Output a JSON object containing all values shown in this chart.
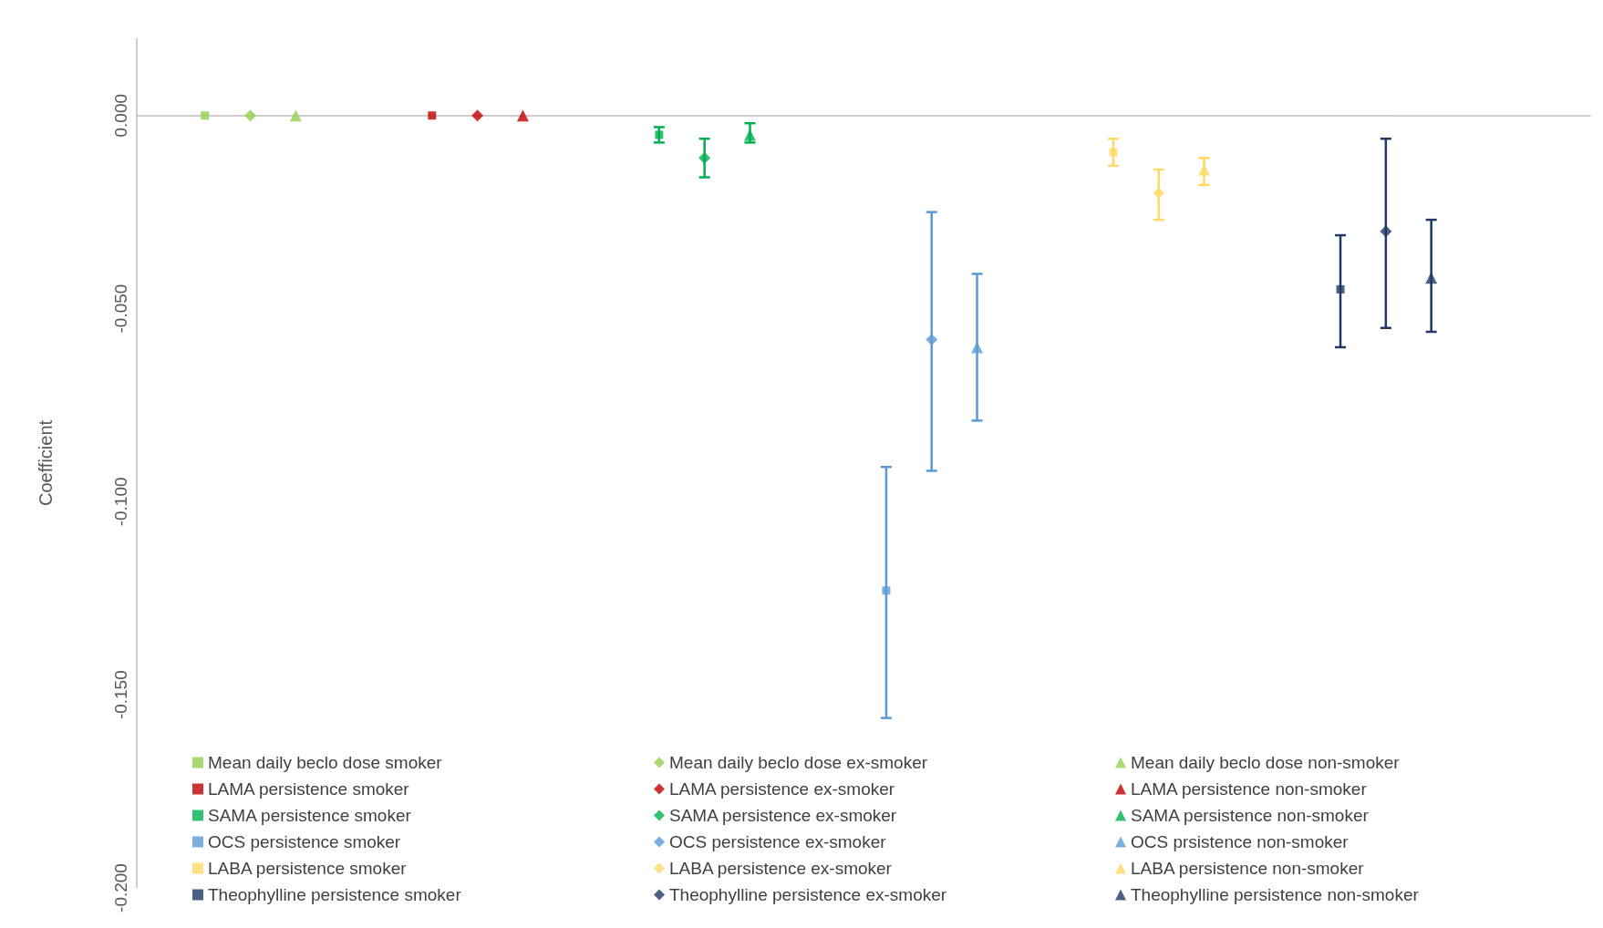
{
  "chart_data": {
    "type": "scatter",
    "ylabel": "Coefficient",
    "categories": [
      null,
      null,
      null,
      null,
      null,
      null,
      null,
      null,
      null,
      null,
      null,
      null,
      null,
      null,
      null,
      null,
      null,
      null,
      null,
      null,
      null,
      null,
      null,
      null,
      null,
      null,
      null,
      null,
      null,
      null,
      null,
      null
    ],
    "ylim": [
      -0.2,
      0.02
    ],
    "yticks": [
      {
        "value": 0,
        "label": "0.000"
      },
      {
        "value": -0.05,
        "label": "-0.050"
      },
      {
        "value": -0.1,
        "label": "-0.100"
      },
      {
        "value": -0.15,
        "label": "-0.150"
      },
      {
        "value": -0.2,
        "label": "-0.200"
      }
    ],
    "tick_labels": "y",
    "legend": "bottom",
    "series": [
      {
        "name": "Mean daily beclo dose smoker",
        "color": "#92d050",
        "marker": "square",
        "values": [
          null,
          0,
          null,
          null,
          null,
          null,
          null,
          null,
          null,
          null,
          null,
          null,
          null,
          null,
          null,
          null,
          null,
          null,
          null,
          null,
          null,
          null,
          null,
          null,
          null,
          null,
          null,
          null,
          null,
          null,
          null,
          null
        ]
      },
      {
        "name": "Mean daily beclo dose ex-smoker",
        "color": "#92d050",
        "marker": "diamond",
        "values": [
          null,
          null,
          0,
          null,
          null,
          null,
          null,
          null,
          null,
          null,
          null,
          null,
          null,
          null,
          null,
          null,
          null,
          null,
          null,
          null,
          null,
          null,
          null,
          null,
          null,
          null,
          null,
          null,
          null,
          null,
          null,
          null
        ]
      },
      {
        "name": "Mean daily beclo dose non-smoker",
        "color": "#92d050",
        "marker": "triangle",
        "values": [
          null,
          null,
          null,
          0,
          null,
          null,
          null,
          null,
          null,
          null,
          null,
          null,
          null,
          null,
          null,
          null,
          null,
          null,
          null,
          null,
          null,
          null,
          null,
          null,
          null,
          null,
          null,
          null,
          null,
          null,
          null,
          null
        ]
      },
      {
        "name": "LAMA persistence smoker",
        "color": "#c00000",
        "marker": "square",
        "values": [
          null,
          null,
          null,
          null,
          null,
          null,
          0,
          null,
          null,
          null,
          null,
          null,
          null,
          null,
          null,
          null,
          null,
          null,
          null,
          null,
          null,
          null,
          null,
          null,
          null,
          null,
          null,
          null,
          null,
          null,
          null,
          null
        ]
      },
      {
        "name": "LAMA persistence ex-smoker",
        "color": "#c00000",
        "marker": "diamond",
        "values": [
          null,
          null,
          null,
          null,
          null,
          null,
          null,
          0,
          null,
          null,
          null,
          null,
          null,
          null,
          null,
          null,
          null,
          null,
          null,
          null,
          null,
          null,
          null,
          null,
          null,
          null,
          null,
          null,
          null,
          null,
          null,
          null
        ]
      },
      {
        "name": "LAMA persistence non-smoker",
        "color": "#c00000",
        "marker": "triangle",
        "values": [
          null,
          null,
          null,
          null,
          null,
          null,
          null,
          null,
          0,
          null,
          null,
          null,
          null,
          null,
          null,
          null,
          null,
          null,
          null,
          null,
          null,
          null,
          null,
          null,
          null,
          null,
          null,
          null,
          null,
          null,
          null,
          null
        ]
      },
      {
        "name": "SAMA persistence smoker",
        "color": "#00b050",
        "marker": "square",
        "values": [
          null,
          null,
          null,
          null,
          null,
          null,
          null,
          null,
          null,
          null,
          null,
          -0.005,
          null,
          null,
          null,
          null,
          null,
          null,
          null,
          null,
          null,
          null,
          null,
          null,
          null,
          null,
          null,
          null,
          null,
          null,
          null,
          null
        ],
        "errors": [
          null,
          null,
          null,
          null,
          null,
          null,
          null,
          null,
          null,
          null,
          null,
          [
            -0.007,
            -0.003
          ],
          null,
          null,
          null,
          null,
          null,
          null,
          null,
          null,
          null,
          null,
          null,
          null,
          null,
          null,
          null,
          null,
          null,
          null,
          null,
          null
        ]
      },
      {
        "name": "SAMA persistence ex-smoker",
        "color": "#00b050",
        "marker": "diamond",
        "values": [
          null,
          null,
          null,
          null,
          null,
          null,
          null,
          null,
          null,
          null,
          null,
          null,
          -0.011,
          null,
          null,
          null,
          null,
          null,
          null,
          null,
          null,
          null,
          null,
          null,
          null,
          null,
          null,
          null,
          null,
          null,
          null,
          null
        ],
        "errors": [
          null,
          null,
          null,
          null,
          null,
          null,
          null,
          null,
          null,
          null,
          null,
          null,
          [
            -0.016,
            -0.006
          ],
          null,
          null,
          null,
          null,
          null,
          null,
          null,
          null,
          null,
          null,
          null,
          null,
          null,
          null,
          null,
          null,
          null,
          null,
          null
        ]
      },
      {
        "name": "SAMA persistence non-smoker",
        "color": "#00b050",
        "marker": "triangle",
        "values": [
          null,
          null,
          null,
          null,
          null,
          null,
          null,
          null,
          null,
          null,
          null,
          null,
          null,
          -0.005,
          null,
          null,
          null,
          null,
          null,
          null,
          null,
          null,
          null,
          null,
          null,
          null,
          null,
          null,
          null,
          null,
          null,
          null
        ],
        "errors": [
          null,
          null,
          null,
          null,
          null,
          null,
          null,
          null,
          null,
          null,
          null,
          null,
          null,
          [
            -0.007,
            -0.002
          ],
          null,
          null,
          null,
          null,
          null,
          null,
          null,
          null,
          null,
          null,
          null,
          null,
          null,
          null,
          null,
          null,
          null,
          null
        ]
      },
      {
        "name": "OCS persistence smoker",
        "color": "#5b9bd5",
        "marker": "square",
        "values": [
          null,
          null,
          null,
          null,
          null,
          null,
          null,
          null,
          null,
          null,
          null,
          null,
          null,
          null,
          null,
          null,
          -0.123,
          null,
          null,
          null,
          null,
          null,
          null,
          null,
          null,
          null,
          null,
          null,
          null,
          null,
          null,
          null
        ],
        "errors": [
          null,
          null,
          null,
          null,
          null,
          null,
          null,
          null,
          null,
          null,
          null,
          null,
          null,
          null,
          null,
          null,
          [
            -0.156,
            -0.091
          ],
          null,
          null,
          null,
          null,
          null,
          null,
          null,
          null,
          null,
          null,
          null,
          null,
          null,
          null,
          null
        ]
      },
      {
        "name": "OCS persistence ex-smoker",
        "color": "#5b9bd5",
        "marker": "diamond",
        "values": [
          null,
          null,
          null,
          null,
          null,
          null,
          null,
          null,
          null,
          null,
          null,
          null,
          null,
          null,
          null,
          null,
          null,
          -0.058,
          null,
          null,
          null,
          null,
          null,
          null,
          null,
          null,
          null,
          null,
          null,
          null,
          null,
          null
        ],
        "errors": [
          null,
          null,
          null,
          null,
          null,
          null,
          null,
          null,
          null,
          null,
          null,
          null,
          null,
          null,
          null,
          null,
          null,
          [
            -0.092,
            -0.025
          ],
          null,
          null,
          null,
          null,
          null,
          null,
          null,
          null,
          null,
          null,
          null,
          null,
          null,
          null
        ]
      },
      {
        "name": "OCS prsistence non-smoker",
        "color": "#5b9bd5",
        "marker": "triangle",
        "values": [
          null,
          null,
          null,
          null,
          null,
          null,
          null,
          null,
          null,
          null,
          null,
          null,
          null,
          null,
          null,
          null,
          null,
          null,
          -0.06,
          null,
          null,
          null,
          null,
          null,
          null,
          null,
          null,
          null,
          null,
          null,
          null,
          null
        ],
        "errors": [
          null,
          null,
          null,
          null,
          null,
          null,
          null,
          null,
          null,
          null,
          null,
          null,
          null,
          null,
          null,
          null,
          null,
          null,
          [
            -0.079,
            -0.041
          ],
          null,
          null,
          null,
          null,
          null,
          null,
          null,
          null,
          null,
          null,
          null,
          null,
          null
        ]
      },
      {
        "name": "LABA persistence smoker",
        "color": "#ffd966",
        "marker": "square",
        "values": [
          null,
          null,
          null,
          null,
          null,
          null,
          null,
          null,
          null,
          null,
          null,
          null,
          null,
          null,
          null,
          null,
          null,
          null,
          null,
          null,
          null,
          -0.0095,
          null,
          null,
          null,
          null,
          null,
          null,
          null,
          null,
          null,
          null
        ],
        "errors": [
          null,
          null,
          null,
          null,
          null,
          null,
          null,
          null,
          null,
          null,
          null,
          null,
          null,
          null,
          null,
          null,
          null,
          null,
          null,
          null,
          null,
          [
            -0.013,
            -0.006
          ],
          null,
          null,
          null,
          null,
          null,
          null,
          null,
          null,
          null,
          null
        ]
      },
      {
        "name": "LABA persistence ex-smoker",
        "color": "#ffd966",
        "marker": "diamond",
        "values": [
          null,
          null,
          null,
          null,
          null,
          null,
          null,
          null,
          null,
          null,
          null,
          null,
          null,
          null,
          null,
          null,
          null,
          null,
          null,
          null,
          null,
          null,
          -0.02,
          null,
          null,
          null,
          null,
          null,
          null,
          null,
          null,
          null
        ],
        "errors": [
          null,
          null,
          null,
          null,
          null,
          null,
          null,
          null,
          null,
          null,
          null,
          null,
          null,
          null,
          null,
          null,
          null,
          null,
          null,
          null,
          null,
          null,
          [
            -0.027,
            -0.014
          ],
          null,
          null,
          null,
          null,
          null,
          null,
          null,
          null,
          null
        ]
      },
      {
        "name": "LABA persistence non-smoker",
        "color": "#ffd966",
        "marker": "triangle",
        "values": [
          null,
          null,
          null,
          null,
          null,
          null,
          null,
          null,
          null,
          null,
          null,
          null,
          null,
          null,
          null,
          null,
          null,
          null,
          null,
          null,
          null,
          null,
          null,
          -0.014,
          null,
          null,
          null,
          null,
          null,
          null,
          null,
          null
        ],
        "errors": [
          null,
          null,
          null,
          null,
          null,
          null,
          null,
          null,
          null,
          null,
          null,
          null,
          null,
          null,
          null,
          null,
          null,
          null,
          null,
          null,
          null,
          null,
          null,
          [
            -0.018,
            -0.011
          ],
          null,
          null,
          null,
          null,
          null,
          null,
          null,
          null
        ]
      },
      {
        "name": "Theophylline persistence smoker",
        "color": "#1f3864",
        "marker": "square",
        "values": [
          null,
          null,
          null,
          null,
          null,
          null,
          null,
          null,
          null,
          null,
          null,
          null,
          null,
          null,
          null,
          null,
          null,
          null,
          null,
          null,
          null,
          null,
          null,
          null,
          null,
          null,
          -0.045,
          null,
          null,
          null,
          null,
          null
        ],
        "errors": [
          null,
          null,
          null,
          null,
          null,
          null,
          null,
          null,
          null,
          null,
          null,
          null,
          null,
          null,
          null,
          null,
          null,
          null,
          null,
          null,
          null,
          null,
          null,
          null,
          null,
          null,
          [
            -0.06,
            -0.031
          ],
          null,
          null,
          null,
          null,
          null
        ]
      },
      {
        "name": "Theophylline persistence ex-smoker",
        "color": "#1f3864",
        "marker": "diamond",
        "values": [
          null,
          null,
          null,
          null,
          null,
          null,
          null,
          null,
          null,
          null,
          null,
          null,
          null,
          null,
          null,
          null,
          null,
          null,
          null,
          null,
          null,
          null,
          null,
          null,
          null,
          null,
          null,
          -0.03,
          null,
          null,
          null,
          null
        ],
        "errors": [
          null,
          null,
          null,
          null,
          null,
          null,
          null,
          null,
          null,
          null,
          null,
          null,
          null,
          null,
          null,
          null,
          null,
          null,
          null,
          null,
          null,
          null,
          null,
          null,
          null,
          null,
          null,
          [
            -0.055,
            -0.006
          ],
          null,
          null,
          null,
          null
        ]
      },
      {
        "name": "Theophylline persistence non-smoker",
        "color": "#1f3864",
        "marker": "triangle",
        "values": [
          null,
          null,
          null,
          null,
          null,
          null,
          null,
          null,
          null,
          null,
          null,
          null,
          null,
          null,
          null,
          null,
          null,
          null,
          null,
          null,
          null,
          null,
          null,
          null,
          null,
          null,
          null,
          null,
          -0.042,
          null,
          null,
          null
        ],
        "errors": [
          null,
          null,
          null,
          null,
          null,
          null,
          null,
          null,
          null,
          null,
          null,
          null,
          null,
          null,
          null,
          null,
          null,
          null,
          null,
          null,
          null,
          null,
          null,
          null,
          null,
          null,
          null,
          null,
          [
            -0.056,
            -0.027
          ],
          null,
          null,
          null
        ]
      }
    ]
  }
}
